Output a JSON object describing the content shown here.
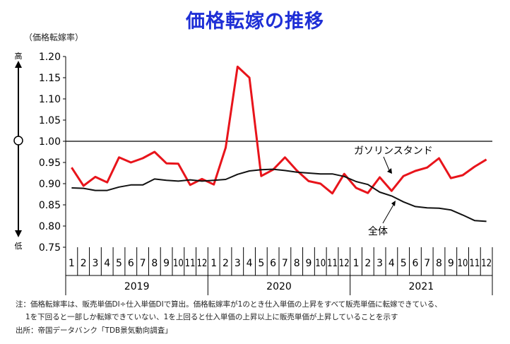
{
  "chart_data": {
    "type": "line",
    "title": "価格転嫁の推移",
    "ylabel": "（価格転嫁率）",
    "ylim": [
      0.75,
      1.2
    ],
    "yticks": [
      "1.20",
      "1.15",
      "1.10",
      "1.05",
      "1.00",
      "0.95",
      "0.90",
      "0.85",
      "0.80",
      "0.75"
    ],
    "reference_line": 1.0,
    "scale_labels": {
      "high": "高",
      "low": "低"
    },
    "categories": [
      "1",
      "2",
      "3",
      "4",
      "5",
      "6",
      "7",
      "8",
      "9",
      "10",
      "11",
      "12",
      "1",
      "2",
      "3",
      "4",
      "5",
      "6",
      "7",
      "8",
      "9",
      "10",
      "11",
      "12",
      "1",
      "2",
      "3",
      "4",
      "5",
      "6",
      "7",
      "8",
      "9",
      "10",
      "11",
      "12"
    ],
    "years": [
      "2019",
      "2020",
      "2021"
    ],
    "series": [
      {
        "name": "ガソリンスタンド",
        "color": "#e8141b",
        "values": [
          0.938,
          0.895,
          0.916,
          0.903,
          0.962,
          0.95,
          0.96,
          0.975,
          0.948,
          0.947,
          0.897,
          0.911,
          0.898,
          0.985,
          1.176,
          1.15,
          0.918,
          0.933,
          0.962,
          0.931,
          0.906,
          0.9,
          0.877,
          0.923,
          0.89,
          0.878,
          0.915,
          0.883,
          0.918,
          0.93,
          0.938,
          0.96,
          0.913,
          0.92,
          0.94,
          0.957
        ]
      },
      {
        "name": "全体",
        "color": "#111111",
        "values": [
          0.89,
          0.889,
          0.884,
          0.884,
          0.892,
          0.897,
          0.897,
          0.911,
          0.908,
          0.906,
          0.909,
          0.906,
          0.908,
          0.91,
          0.922,
          0.93,
          0.933,
          0.934,
          0.931,
          0.927,
          0.925,
          0.923,
          0.923,
          0.917,
          0.905,
          0.898,
          0.88,
          0.871,
          0.857,
          0.846,
          0.843,
          0.842,
          0.838,
          0.826,
          0.813,
          0.811
        ]
      }
    ]
  },
  "notes": [
    "注：価格転嫁率は、販売単価DI÷仕入単価DIで算出。価格転嫁率が1のとき仕入単価の上昇をすべて販売単価に転嫁できている、",
    "1を下回ると一部しか転嫁できていない、1を上回ると仕入単価の上昇以上に販売単価が上昇していることを示す",
    "出所：帝国データバンク「TDB景気動向調査」"
  ]
}
